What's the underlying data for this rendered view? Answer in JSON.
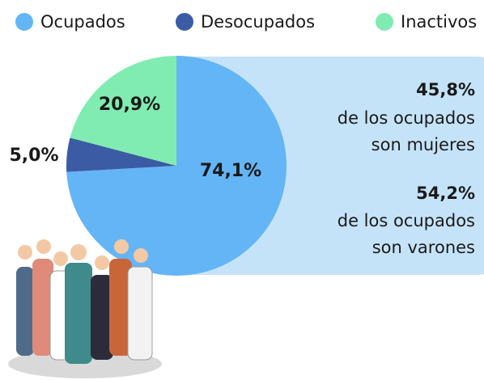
{
  "chart_data": {
    "type": "pie",
    "categories": [
      "Ocupados",
      "Desocupados",
      "Inactivos"
    ],
    "values": [
      74.1,
      5.0,
      20.9
    ],
    "value_labels": [
      "74,1%",
      "5,0%",
      "20,9%"
    ],
    "colors": [
      "#64b5f6",
      "#3b5ba5",
      "#80ecb1"
    ],
    "legend": "top",
    "annotations": [
      "45,8%",
      "de los ocupados",
      "son mujeres",
      "54,2%",
      "de los ocupados",
      "son varones"
    ]
  }
}
